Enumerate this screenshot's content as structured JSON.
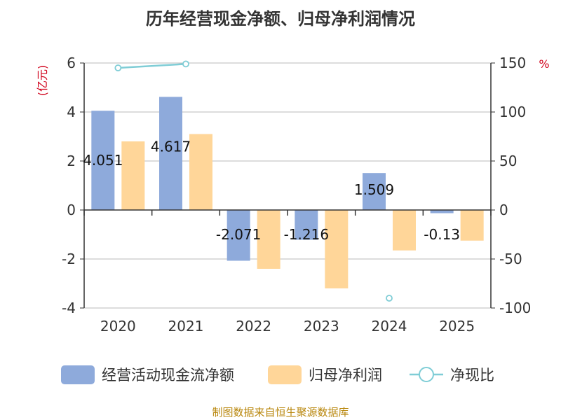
{
  "chart_data": {
    "type": "bar",
    "title": "历年经营现金净额、归母净利润情况",
    "categories": [
      "2020",
      "2021",
      "2022",
      "2023",
      "2024",
      "2025"
    ],
    "y_left": {
      "unit": "(亿元)",
      "range": [
        -4,
        6
      ],
      "ticks": [
        6,
        4,
        2,
        0,
        -2,
        -4
      ]
    },
    "y_right": {
      "unit": "%",
      "range": [
        -100,
        150
      ],
      "ticks": [
        150,
        100,
        50,
        0,
        -50,
        -100
      ]
    },
    "series": [
      {
        "name": "经营活动现金流净额",
        "type": "bar",
        "axis": "left",
        "color": "#8eaadb",
        "values": [
          4.051,
          4.617,
          -2.071,
          -1.216,
          1.509,
          -0.13
        ],
        "labels": [
          "4.051",
          "4.617",
          "-2.071",
          "-1.216",
          "1.509",
          "-0.13"
        ]
      },
      {
        "name": "归母净利润",
        "type": "bar",
        "axis": "left",
        "color": "#ffd699",
        "values": [
          2.8,
          3.1,
          -2.4,
          -3.2,
          -1.65,
          -1.25
        ]
      },
      {
        "name": "净现比",
        "type": "line",
        "axis": "right",
        "color": "#7fcdd6",
        "values": [
          145,
          149,
          null,
          null,
          -90,
          null
        ]
      }
    ],
    "grid": true,
    "legend_position": "bottom",
    "source": "制图数据来自恒生聚源数据库"
  }
}
